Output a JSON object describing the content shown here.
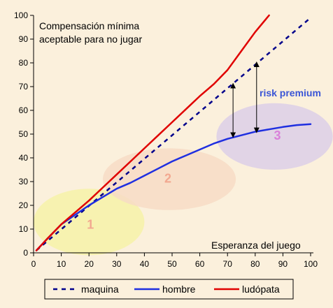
{
  "chart_data": {
    "type": "line",
    "xlabel": "Esperanza del juego",
    "ylabel": "Compensación mínima aceptable para no jugar",
    "ylabel_lines": [
      "Compensación mínima",
      "aceptable para no jugar"
    ],
    "xlim": [
      0,
      100
    ],
    "ylim": [
      0,
      100
    ],
    "x_ticks": [
      0,
      10,
      20,
      30,
      40,
      50,
      60,
      70,
      80,
      90,
      100
    ],
    "y_ticks": [
      0,
      10,
      20,
      30,
      40,
      50,
      60,
      70,
      80,
      90,
      100
    ],
    "grid": false,
    "legend_position": "bottom",
    "series": [
      {
        "name": "maquina",
        "color": "#00008b",
        "style": "dashed",
        "points": [
          [
            1,
            1
          ],
          [
            100,
            99
          ]
        ]
      },
      {
        "name": "hombre",
        "color": "#1f2fe0",
        "style": "solid",
        "points": [
          [
            1,
            1
          ],
          [
            5,
            6
          ],
          [
            10,
            12
          ],
          [
            15,
            16
          ],
          [
            20,
            20
          ],
          [
            25,
            23.5
          ],
          [
            30,
            27
          ],
          [
            35,
            29.5
          ],
          [
            40,
            32.5
          ],
          [
            45,
            35.5
          ],
          [
            50,
            38.5
          ],
          [
            55,
            41
          ],
          [
            60,
            43.5
          ],
          [
            65,
            46
          ],
          [
            70,
            48
          ],
          [
            75,
            49.5
          ],
          [
            80,
            51
          ],
          [
            85,
            52
          ],
          [
            90,
            53
          ],
          [
            95,
            53.8
          ],
          [
            100,
            54.2
          ]
        ]
      },
      {
        "name": "ludópata",
        "color": "#e00000",
        "style": "solid",
        "points": [
          [
            1,
            1
          ],
          [
            5,
            6
          ],
          [
            10,
            12
          ],
          [
            15,
            17
          ],
          [
            20,
            22
          ],
          [
            25,
            27.5
          ],
          [
            30,
            33
          ],
          [
            35,
            38.5
          ],
          [
            40,
            44
          ],
          [
            45,
            49.5
          ],
          [
            50,
            55
          ],
          [
            55,
            60.5
          ],
          [
            60,
            66
          ],
          [
            65,
            71
          ],
          [
            70,
            77
          ],
          [
            75,
            85
          ],
          [
            80,
            93
          ],
          [
            85,
            100
          ]
        ]
      }
    ],
    "zones": [
      {
        "label": "1",
        "cx": 20,
        "cy": 13,
        "rx": 20,
        "ry": 14,
        "fill": "#f6f2a8",
        "text_color": "#f2a890"
      },
      {
        "label": "2",
        "cx": 49,
        "cy": 31,
        "rx": 24,
        "ry": 13,
        "fill": "#f7dcc6",
        "text_color": "#f2a890"
      },
      {
        "label": "3",
        "cx": 87,
        "cy": 49,
        "rx": 21,
        "ry": 14,
        "fill": "#dccfe8",
        "text_color": "#d980d9"
      }
    ],
    "risk_arrows": [
      {
        "x": 72,
        "y_top": 71,
        "y_bottom": 49
      },
      {
        "x": 80.5,
        "y_top": 80,
        "y_bottom": 51
      }
    ],
    "risk_label": "risk premium",
    "risk_label_color": "#3a55d6"
  }
}
